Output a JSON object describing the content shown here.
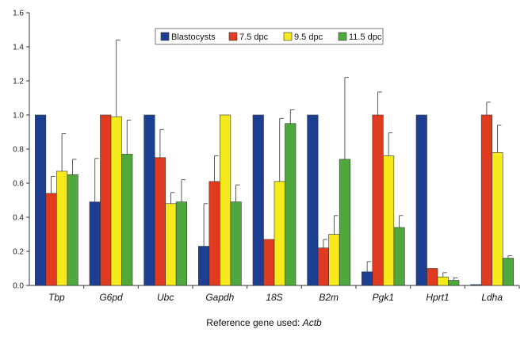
{
  "chart_data": {
    "type": "bar",
    "categories": [
      "Tbp",
      "G6pd",
      "Ubc",
      "Gapdh",
      "18S",
      "B2m",
      "Pgk1",
      "Hprt1",
      "Ldha"
    ],
    "series": [
      {
        "name": "Blastocysts",
        "color": "#1c3f94",
        "values": [
          1.0,
          0.49,
          1.0,
          0.23,
          1.0,
          1.0,
          0.08,
          1.0,
          0.005
        ],
        "errors": [
          0,
          0.255,
          0,
          0.25,
          0,
          0,
          0.06,
          0,
          0
        ]
      },
      {
        "name": "7.5 dpc",
        "color": "#e03a20",
        "values": [
          0.54,
          1.0,
          0.75,
          0.61,
          0.27,
          0.22,
          1.0,
          0.1,
          1.0
        ],
        "errors": [
          0.1,
          0,
          0.165,
          0.15,
          0,
          0.05,
          0.135,
          0,
          0.075
        ]
      },
      {
        "name": "9.5 dpc",
        "color": "#f7ea1c",
        "values": [
          0.67,
          0.99,
          0.48,
          1.0,
          0.61,
          0.3,
          0.76,
          0.05,
          0.78
        ],
        "errors": [
          0.22,
          0.45,
          0.065,
          0,
          0.37,
          0.11,
          0.135,
          0.025,
          0.16
        ]
      },
      {
        "name": "11.5 dpc",
        "color": "#4fa83d",
        "values": [
          0.65,
          0.77,
          0.49,
          0.49,
          0.95,
          0.74,
          0.34,
          0.03,
          0.16
        ],
        "errors": [
          0.09,
          0.2,
          0.13,
          0.1,
          0.08,
          0.48,
          0.07,
          0.015,
          0.015
        ]
      }
    ],
    "ylim": [
      0,
      1.6
    ],
    "yticks": [
      "0.0",
      "0.2",
      "0.4",
      "0.6",
      "0.8",
      "1.0",
      "1.2",
      "1.4",
      "1.6"
    ],
    "legend_position": "top-center",
    "grid": false
  },
  "caption": {
    "prefix": "Reference gene used: ",
    "gene": "Actb"
  }
}
